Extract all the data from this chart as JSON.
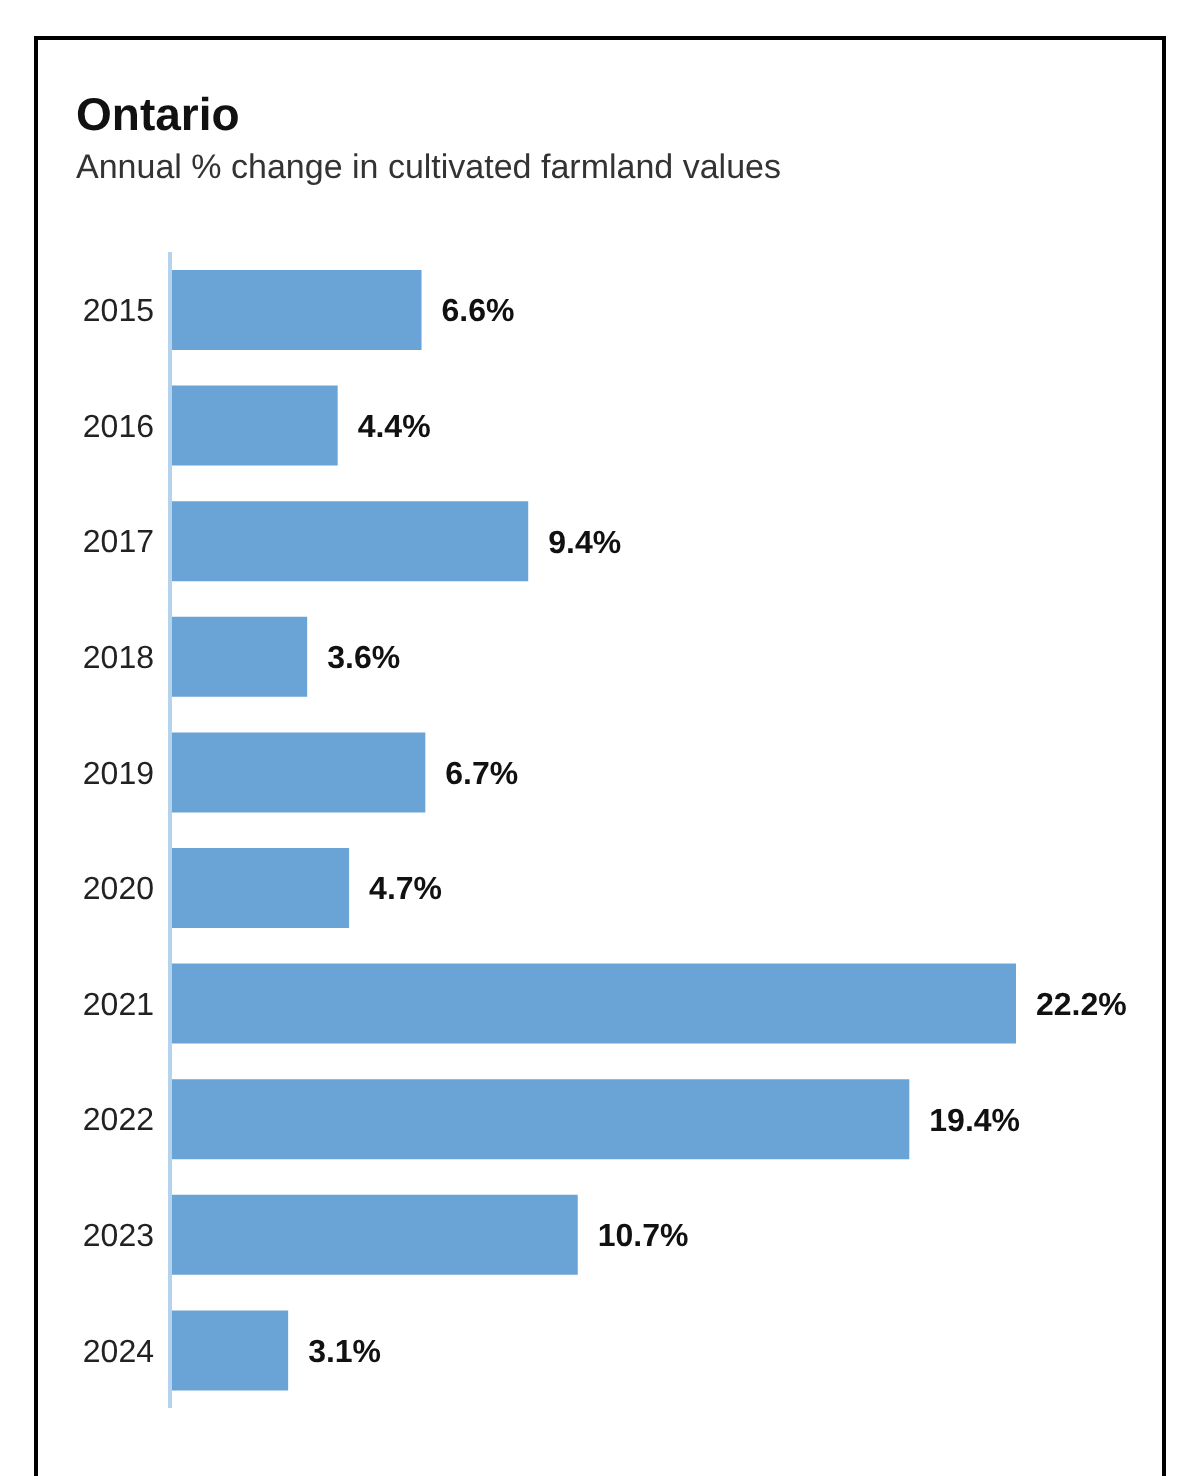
{
  "chart_data": {
    "type": "bar",
    "orientation": "horizontal",
    "title": "Ontario",
    "subtitle": "Annual % change in cultivated farmland values",
    "categories": [
      "2015",
      "2016",
      "2017",
      "2018",
      "2019",
      "2020",
      "2021",
      "2022",
      "2023",
      "2024"
    ],
    "values": [
      6.6,
      4.4,
      9.4,
      3.6,
      6.7,
      4.7,
      22.2,
      19.4,
      10.7,
      3.1
    ],
    "value_labels": [
      "6.6%",
      "4.4%",
      "9.4%",
      "3.6%",
      "6.7%",
      "4.7%",
      "22.2%",
      "19.4%",
      "10.7%",
      "3.1%"
    ],
    "color": "#6aa3d6",
    "grid": false,
    "legend": false,
    "tick_labels": "y"
  }
}
